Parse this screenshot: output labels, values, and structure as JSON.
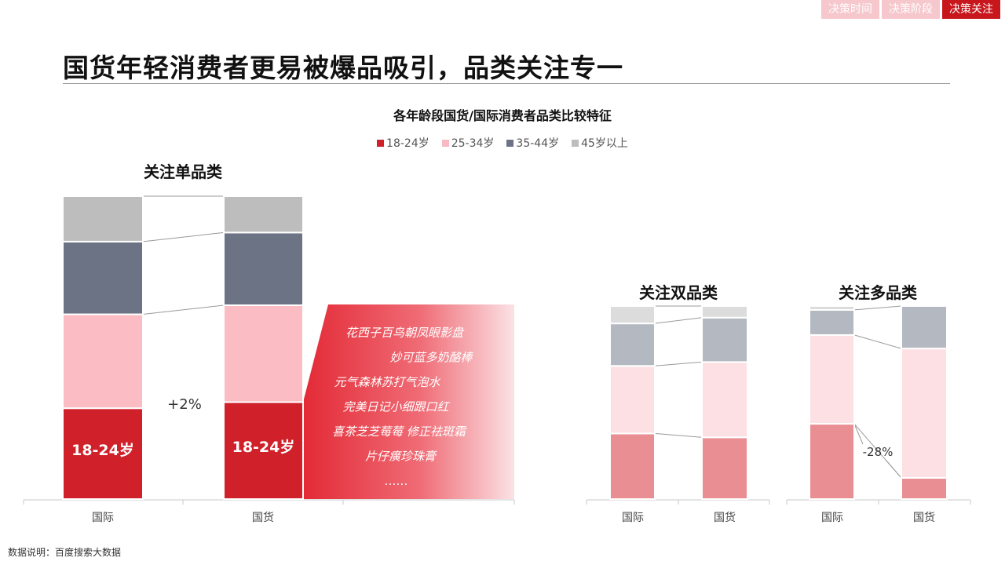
{
  "nav": {
    "tabs": [
      {
        "label": "决策时间",
        "active": false
      },
      {
        "label": "决策阶段",
        "active": false
      },
      {
        "label": "决策关注",
        "active": true
      }
    ]
  },
  "page_title": "国货年轻消费者更易被爆品吸引，品类关注专一",
  "source": "数据说明：百度搜索大数据",
  "chart_data": {
    "type": "bar",
    "title": "各年龄段国货/国际消费者品类比较特征",
    "legend": [
      {
        "name": "18-24岁",
        "color": "#d0202a"
      },
      {
        "name": "25-34岁",
        "color": "#f9b9c2"
      },
      {
        "name": "35-44岁",
        "color": "#6b7385"
      },
      {
        "name": "45岁以上",
        "color": "#bdbdbd"
      }
    ],
    "groups": [
      {
        "title": "关注单品类",
        "categories": [
          "国际",
          "国货"
        ],
        "colors": [
          "#d0202a",
          "#fbbcc4",
          "#6b7385",
          "#bdbdbd"
        ],
        "series": [
          {
            "name": "18-24岁",
            "values": [
              30,
              32
            ]
          },
          {
            "name": "25-34岁",
            "values": [
              31,
              32
            ]
          },
          {
            "name": "35-44岁",
            "values": [
              24,
              24
            ]
          },
          {
            "name": "45岁以上",
            "values": [
              15,
              12
            ]
          }
        ],
        "bar_labels": [
          "18-24岁",
          "18-24岁"
        ],
        "annotation": "+2%",
        "callout_items": [
          "花西子百鸟朝凤眼影盘",
          "妙可蓝多奶酪棒",
          "元气森林苏打气泡水",
          "完美日记小细跟口红",
          "喜茶芝芝莓莓",
          "修正祛斑霜",
          "片仔癀珍珠膏",
          "……"
        ]
      },
      {
        "title": "关注双品类",
        "categories": [
          "国际",
          "国货"
        ],
        "colors": [
          "#e98e92",
          "#fde0e4",
          "#b3b8c1",
          "#dcdcdc"
        ],
        "series": [
          {
            "name": "18-24岁",
            "values": [
              34,
              32
            ]
          },
          {
            "name": "25-34岁",
            "values": [
              35,
              39
            ]
          },
          {
            "name": "35-44岁",
            "values": [
              22,
              23
            ]
          },
          {
            "name": "45岁以上",
            "values": [
              9,
              6
            ]
          }
        ]
      },
      {
        "title": "关注多品类",
        "categories": [
          "国际",
          "国货"
        ],
        "colors": [
          "#e98e92",
          "#fde0e4",
          "#b3b8c1",
          "#dcdcdc"
        ],
        "series": [
          {
            "name": "18-24岁",
            "values": [
              39,
              11
            ]
          },
          {
            "name": "25-34岁",
            "values": [
              46,
              67
            ]
          },
          {
            "name": "35-44岁",
            "values": [
              13,
              22
            ]
          },
          {
            "name": "45岁以上",
            "values": [
              2,
              0
            ]
          }
        ],
        "annotation": "-28%"
      }
    ]
  }
}
